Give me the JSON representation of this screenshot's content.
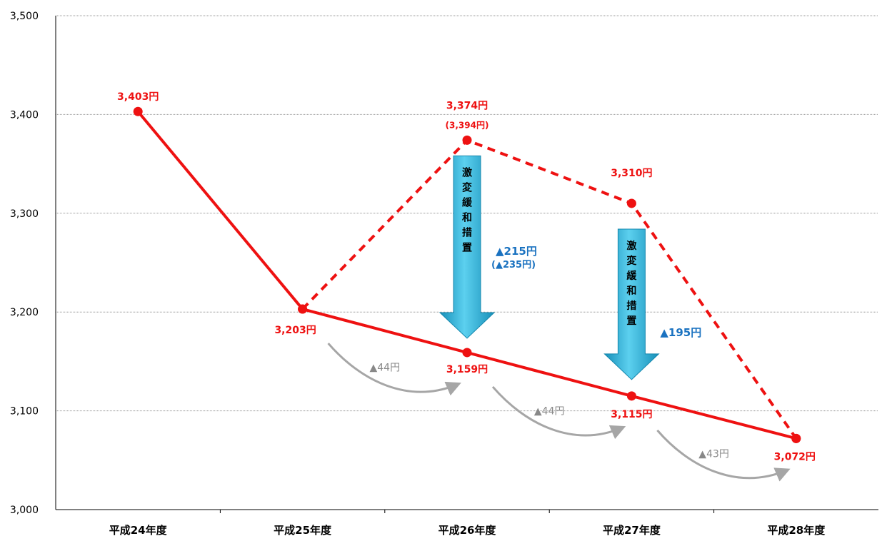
{
  "chart_data": {
    "type": "line",
    "categories": [
      "平成24年度",
      "平成25年度",
      "平成26年度",
      "平成27年度",
      "平成28年度"
    ],
    "ylim": [
      3000,
      3500
    ],
    "yticks": [
      "3,000",
      "3,100",
      "3,200",
      "3,300",
      "3,400",
      "3,500"
    ],
    "grid": true,
    "series": [
      {
        "style": "solid",
        "values": [
          3403,
          3203,
          3159,
          3115,
          3072
        ],
        "labels": [
          "3,403円",
          "3,203円",
          "3,159円",
          "3,115円",
          "3,072円"
        ]
      },
      {
        "style": "dashed",
        "values": [
          null,
          3203,
          3374,
          3310,
          3072
        ],
        "labels": [
          "",
          "",
          "3,374円",
          "3,310円",
          ""
        ],
        "sub_labels": [
          "",
          "",
          "(3,394円)",
          "",
          ""
        ]
      }
    ],
    "mitigation": [
      {
        "text": "激変緩和措置",
        "amount": "▲215円",
        "amount_sub": "(▲235円)"
      },
      {
        "text": "激変緩和措置",
        "amount": "▲195円",
        "amount_sub": ""
      }
    ],
    "step_decreases": [
      "▲44円",
      "▲44円",
      "▲43円"
    ],
    "colors": {
      "line": "#ee1111",
      "mitigation_arrow": "#2bb0d8",
      "mitigation_text": "#1a72c0",
      "step_arrow": "#a6a6a6",
      "grid": "#999999"
    }
  }
}
